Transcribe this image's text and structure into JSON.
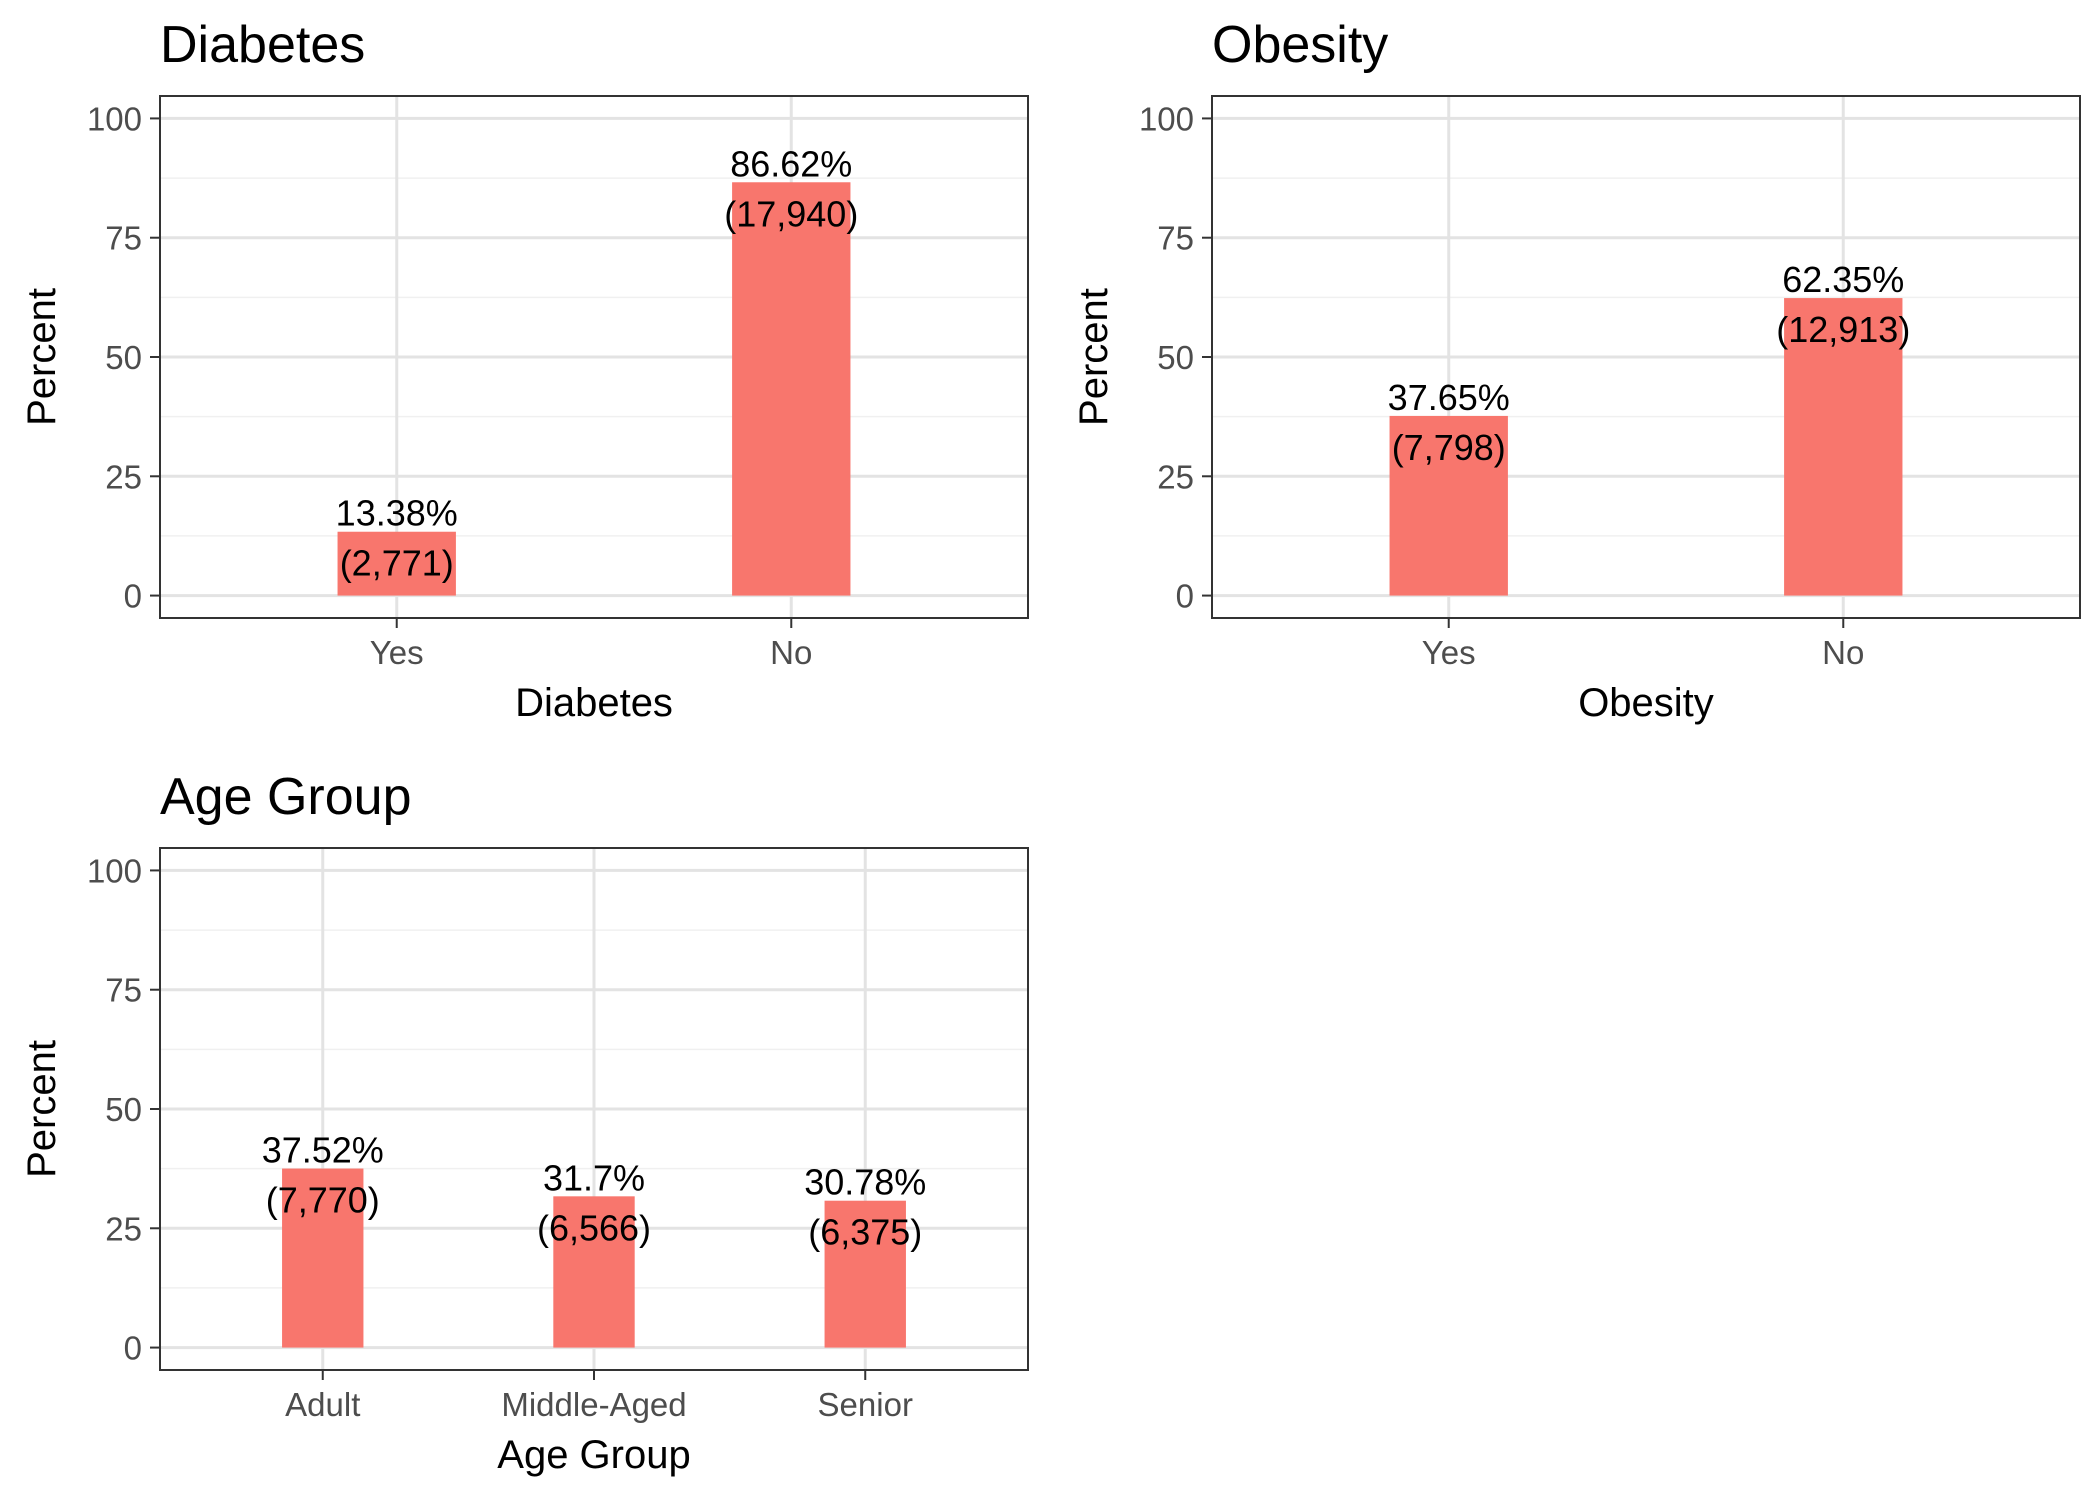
{
  "chart_data": [
    {
      "type": "bar",
      "title": "Diabetes",
      "xlabel": "Diabetes",
      "ylabel": "Percent",
      "categories": [
        "Yes",
        "No"
      ],
      "values": [
        13.38,
        86.62
      ],
      "labels": [
        {
          "percent": "13.38%",
          "count": "(2,771)"
        },
        {
          "percent": "86.62%",
          "count": "(17,940)"
        }
      ],
      "yticks": [
        "0",
        "25",
        "50",
        "75",
        "100"
      ],
      "ylim": [
        -4.7,
        104.7
      ],
      "grid": true,
      "bar_color": "#F8766D"
    },
    {
      "type": "bar",
      "title": "Obesity",
      "xlabel": "Obesity",
      "ylabel": "Percent",
      "categories": [
        "Yes",
        "No"
      ],
      "values": [
        37.65,
        62.35
      ],
      "labels": [
        {
          "percent": "37.65%",
          "count": "(7,798)"
        },
        {
          "percent": "62.35%",
          "count": "(12,913)"
        }
      ],
      "yticks": [
        "0",
        "25",
        "50",
        "75",
        "100"
      ],
      "ylim": [
        -4.7,
        104.7
      ],
      "grid": true,
      "bar_color": "#F8766D"
    },
    {
      "type": "bar",
      "title": "Age Group",
      "xlabel": "Age Group",
      "ylabel": "Percent",
      "categories": [
        "Adult",
        "Middle-Aged",
        "Senior"
      ],
      "values": [
        37.52,
        31.7,
        30.78
      ],
      "labels": [
        {
          "percent": "37.52%",
          "count": "(7,770)"
        },
        {
          "percent": "31.7%",
          "count": "(6,566)"
        },
        {
          "percent": "30.78%",
          "count": "(6,375)"
        }
      ],
      "yticks": [
        "0",
        "25",
        "50",
        "75",
        "100"
      ],
      "ylim": [
        -4.7,
        104.7
      ],
      "grid": true,
      "bar_color": "#F8766D"
    }
  ]
}
